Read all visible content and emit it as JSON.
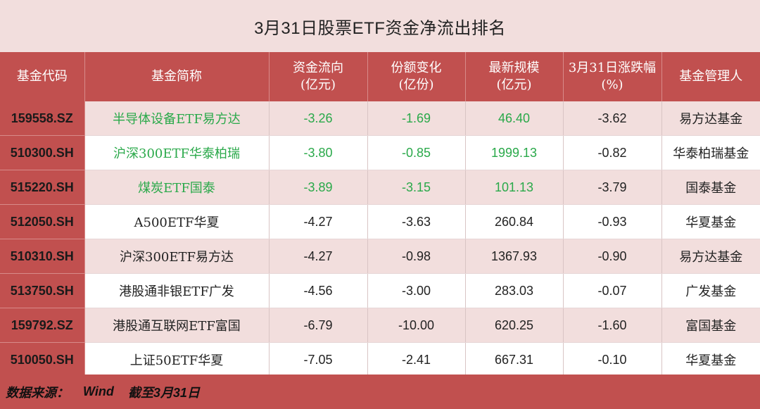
{
  "title": "3月31日股票ETF资金净流出排名",
  "headers": [
    [
      "基金代码"
    ],
    [
      "基金简称"
    ],
    [
      "资金流向",
      "(亿元)"
    ],
    [
      "份额变化",
      "(亿份)"
    ],
    [
      "最新规模",
      "(亿元)"
    ],
    [
      "3月31日涨跌幅",
      "(%)"
    ],
    [
      "基金管理人"
    ]
  ],
  "rows": [
    {
      "code": "159558.SZ",
      "name": "半导体设备ETF易方达",
      "flow": "-3.26",
      "share": "-1.69",
      "scale": "46.40",
      "change": "-3.62",
      "manager": "易方达基金",
      "highlight": true
    },
    {
      "code": "510300.SH",
      "name": "沪深300ETF华泰柏瑞",
      "flow": "-3.80",
      "share": "-0.85",
      "scale": "1999.13",
      "change": "-0.82",
      "manager": "华泰柏瑞基金",
      "highlight": true
    },
    {
      "code": "515220.SH",
      "name": "煤炭ETF国泰",
      "flow": "-3.89",
      "share": "-3.15",
      "scale": "101.13",
      "change": "-3.79",
      "manager": "国泰基金",
      "highlight": true
    },
    {
      "code": "512050.SH",
      "name": "A500ETF华夏",
      "flow": "-4.27",
      "share": "-3.63",
      "scale": "260.84",
      "change": "-0.93",
      "manager": "华夏基金",
      "highlight": false
    },
    {
      "code": "510310.SH",
      "name": "沪深300ETF易方达",
      "flow": "-4.27",
      "share": "-0.98",
      "scale": "1367.93",
      "change": "-0.90",
      "manager": "易方达基金",
      "highlight": false
    },
    {
      "code": "513750.SH",
      "name": "港股通非银ETF广发",
      "flow": "-4.56",
      "share": "-3.00",
      "scale": "283.03",
      "change": "-0.07",
      "manager": "广发基金",
      "highlight": false
    },
    {
      "code": "159792.SZ",
      "name": "港股通互联网ETF富国",
      "flow": "-6.79",
      "share": "-10.00",
      "scale": "620.25",
      "change": "-1.60",
      "manager": "富国基金",
      "highlight": false
    },
    {
      "code": "510050.SH",
      "name": "上证50ETF华夏",
      "flow": "-7.05",
      "share": "-2.41",
      "scale": "667.31",
      "change": "-0.10",
      "manager": "华夏基金",
      "highlight": false
    }
  ],
  "footer": {
    "source_label": "数据来源：",
    "source_value": "Wind",
    "date_note": "截至3月31日"
  },
  "colors": {
    "header_bg": "#c1504f",
    "title_bg": "#f2dedd",
    "stripe_bg": "#f2dedd",
    "highlight_text": "#2aa94a"
  }
}
